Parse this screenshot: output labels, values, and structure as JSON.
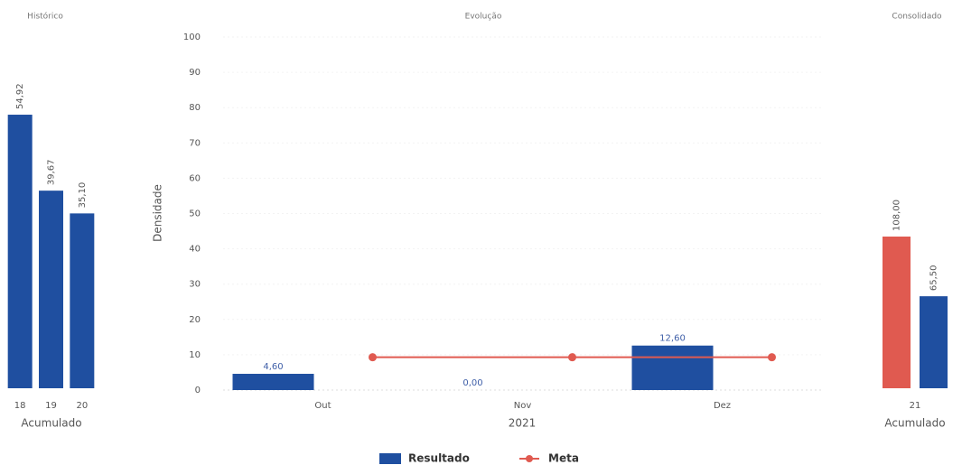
{
  "chart_data": [
    {
      "type": "bar",
      "title": "Histórico",
      "x_label": "Acumulado",
      "categories": [
        "18",
        "19",
        "20"
      ],
      "values": [
        54.92,
        39.67,
        35.1
      ],
      "value_labels": [
        "54,92",
        "39,67",
        "35,10"
      ],
      "color": "#1f4fa0",
      "ylim": [
        0,
        60
      ]
    },
    {
      "type": "bar",
      "title": "Evolução",
      "x_label": "2021",
      "y_label": "Densidade",
      "categories": [
        "Out",
        "Nov",
        "Dez"
      ],
      "series": [
        {
          "name": "Resultado",
          "type": "bar",
          "color": "#1f4fa0",
          "values": [
            4.6,
            0,
            12.6
          ],
          "value_labels": [
            "4,60",
            "0,00",
            "12,60"
          ]
        },
        {
          "name": "Meta",
          "type": "line",
          "color": "#e05a50",
          "values": [
            9.3,
            9.3,
            9.3
          ]
        }
      ],
      "ylim": [
        0,
        100
      ],
      "yticks": [
        0,
        10,
        20,
        30,
        40,
        50,
        60,
        70,
        80,
        90,
        100
      ],
      "grid": true
    },
    {
      "type": "bar",
      "title": "Consolidado",
      "x_label": "Acumulado",
      "categories": [
        "21"
      ],
      "series": [
        {
          "color": "#e05a50",
          "values": [
            108.0
          ],
          "value_labels": [
            "108,00"
          ]
        },
        {
          "color": "#1f4fa0",
          "values": [
            65.5
          ],
          "value_labels": [
            "65,50"
          ]
        }
      ],
      "ylim": [
        0,
        180
      ]
    }
  ]
}
